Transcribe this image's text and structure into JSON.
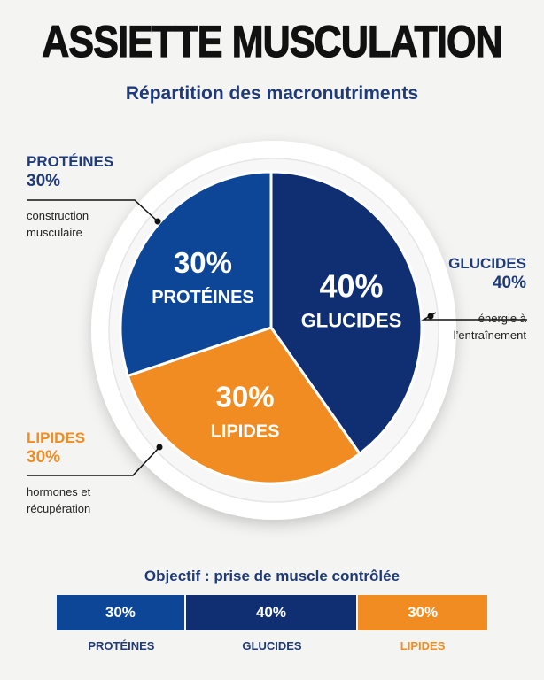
{
  "title": "ASSIETTE MUSCULATION",
  "subtitle": "Répartition des macronutriments",
  "callouts": {
    "proteines": {
      "name": "PROTÉINES",
      "pct": "30%",
      "desc_line1": "construction",
      "desc_line2": "musculaire"
    },
    "glucides": {
      "name": "GLUCIDES",
      "pct": "40%",
      "desc_line1": "énergie à",
      "desc_line2": "l’entraînement"
    },
    "lipides": {
      "name": "LIPIDES",
      "pct": "30%",
      "desc_line1": "hormones et",
      "desc_line2": "récupération"
    }
  },
  "objective": "Objectif : prise de muscle contrôlée",
  "chart_data": {
    "type": "pie",
    "categories": [
      "GLUCIDES",
      "LIPIDES",
      "PROTÉINES"
    ],
    "values": [
      40,
      30,
      30
    ],
    "value_labels": [
      "40%",
      "30%",
      "30%"
    ],
    "colors": [
      "#0f2f72",
      "#f08c21",
      "#0d4696"
    ],
    "summary_bar": {
      "categories": [
        "PROTÉINES",
        "GLUCIDES",
        "LIPIDES"
      ],
      "values": [
        30,
        40,
        30
      ],
      "value_labels": [
        "30%",
        "40%",
        "30%"
      ],
      "colors": [
        "#0d4696",
        "#0f2f72",
        "#f08c21"
      ]
    }
  }
}
